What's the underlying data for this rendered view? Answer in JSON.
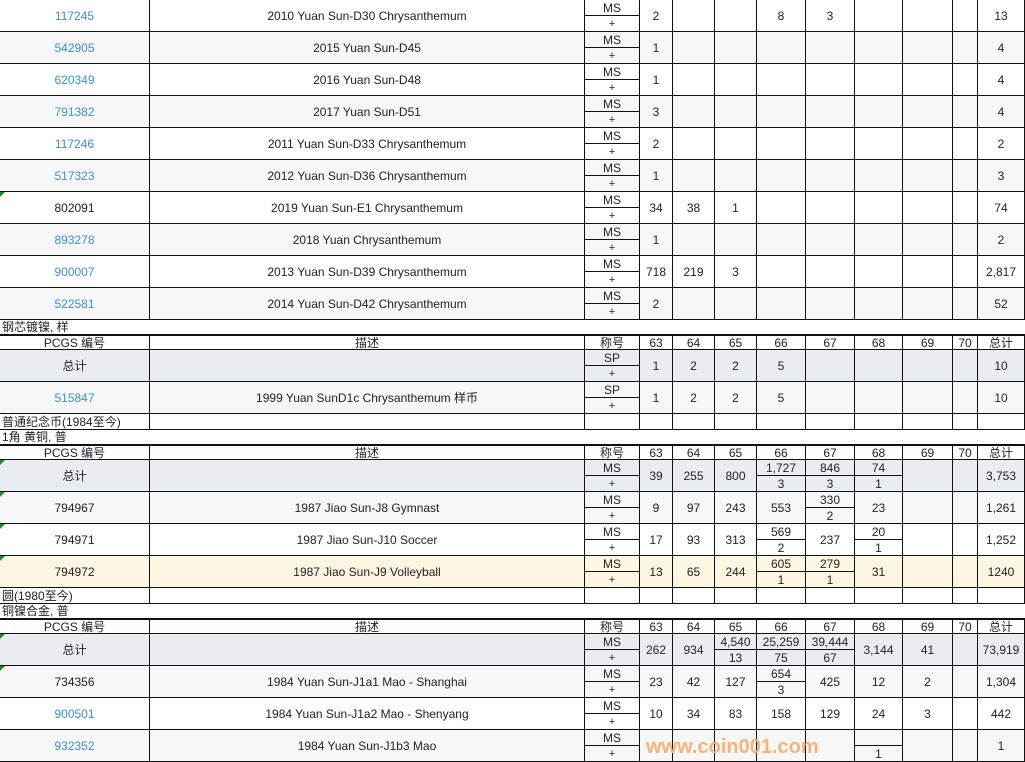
{
  "headers": {
    "id": "PCGS 编号",
    "desc": "描述",
    "designation": "称号",
    "grades": [
      "63",
      "64",
      "65",
      "66",
      "67",
      "68",
      "69",
      "70"
    ],
    "total": "总计"
  },
  "plus": "+",
  "blocks": [
    {
      "type": "rows",
      "rows": [
        {
          "id": "117245",
          "link": true,
          "desc": "2010 Yuan Sun-D30 Chrysanthemum",
          "des": "MS",
          "g": [
            "2",
            "",
            "",
            "8",
            "3",
            "",
            "",
            ""
          ],
          "total": "13"
        },
        {
          "id": "542905",
          "link": true,
          "desc": "2015 Yuan Sun-D45",
          "des": "MS",
          "g": [
            "1",
            "",
            "",
            "",
            "",
            "",
            "",
            ""
          ],
          "total": "4"
        },
        {
          "id": "620349",
          "link": true,
          "desc": "2016 Yuan Sun-D48",
          "des": "MS",
          "g": [
            "1",
            "",
            "",
            "",
            "",
            "",
            "",
            ""
          ],
          "total": "4"
        },
        {
          "id": "791382",
          "link": true,
          "desc": "2017 Yuan Sun-D51",
          "des": "MS",
          "g": [
            "3",
            "",
            "",
            "",
            "",
            "",
            "",
            ""
          ],
          "total": "4"
        },
        {
          "id": "117246",
          "link": true,
          "desc": "2011 Yuan Sun-D33 Chrysanthemum",
          "des": "MS",
          "g": [
            "2",
            "",
            "",
            "",
            "",
            "",
            "",
            ""
          ],
          "total": "2"
        },
        {
          "id": "517323",
          "link": true,
          "desc": "2012 Yuan Sun-D36 Chrysanthemum",
          "des": "MS",
          "g": [
            "1",
            "",
            "",
            "",
            "",
            "",
            "",
            ""
          ],
          "total": "3"
        },
        {
          "id": "802091",
          "link": false,
          "mark": true,
          "desc": "2019 Yuan Sun-E1 Chrysanthemum",
          "des": "MS",
          "g": [
            "34",
            "38",
            "1",
            "",
            "",
            "",
            "",
            ""
          ],
          "total": "74"
        },
        {
          "id": "893278",
          "link": true,
          "desc": "2018 Yuan Chrysanthemum",
          "des": "MS",
          "g": [
            "1",
            "",
            "",
            "",
            "",
            "",
            "",
            ""
          ],
          "total": "2"
        },
        {
          "id": "900007",
          "link": true,
          "desc": "2013 Yuan Sun-D39 Chrysanthemum",
          "des": "MS",
          "g": [
            "718",
            "219",
            "3",
            "",
            "",
            "",
            "",
            ""
          ],
          "total": "2,817"
        },
        {
          "id": "522581",
          "link": true,
          "desc": "2014 Yuan Sun-D42 Chrysanthemum",
          "des": "MS",
          "g": [
            "2",
            "",
            "",
            "",
            "",
            "",
            "",
            ""
          ],
          "total": "52"
        }
      ]
    },
    {
      "type": "section",
      "title": "钢芯镀镍, 样"
    },
    {
      "type": "header"
    },
    {
      "type": "rows",
      "rows": [
        {
          "id": "总计",
          "total_row": true,
          "desc": "",
          "des": "SP",
          "g": [
            "1",
            "2",
            "2",
            "5",
            "",
            "",
            "",
            ""
          ],
          "total": "10"
        },
        {
          "id": "515847",
          "link": true,
          "desc": "1999 Yuan SunD1c Chrysanthemum 样币",
          "des": "SP",
          "g": [
            "1",
            "2",
            "2",
            "5",
            "",
            "",
            "",
            ""
          ],
          "total": "10"
        }
      ]
    },
    {
      "type": "section",
      "title": "普通纪念币(1984至今)",
      "grid": true
    },
    {
      "type": "section",
      "title": "1角 黄铜, 普"
    },
    {
      "type": "header"
    },
    {
      "type": "rows",
      "rows": [
        {
          "id": "总计",
          "total_row": true,
          "mark": true,
          "desc": "",
          "des": "MS",
          "g": [
            "39",
            "255",
            "800",
            [
              "1,727",
              "3"
            ],
            [
              "846",
              "3"
            ],
            [
              "74",
              "1"
            ],
            "",
            ""
          ],
          "total": "3,753"
        },
        {
          "id": "794967",
          "mark": true,
          "desc": "1987 Jiao Sun-J8 Gymnast",
          "des": "MS",
          "g": [
            "9",
            "97",
            "243",
            "553",
            [
              "330",
              "2"
            ],
            "23",
            "",
            ""
          ],
          "total": "1,261"
        },
        {
          "id": "794971",
          "mark": true,
          "desc": "1987 Jiao Sun-J10 Soccer",
          "des": "MS",
          "g": [
            "17",
            "93",
            "313",
            [
              "569",
              "2"
            ],
            "237",
            [
              "20",
              "1"
            ],
            "",
            ""
          ],
          "total": "1,252"
        },
        {
          "id": "794972",
          "mark": true,
          "highlight": true,
          "desc": "1987 Jiao Sun-J9 Volleyball",
          "des": "MS",
          "g": [
            "13",
            "65",
            "244",
            [
              "605",
              "1"
            ],
            [
              "279",
              "1"
            ],
            "31",
            "",
            ""
          ],
          "total": "1240"
        }
      ]
    },
    {
      "type": "section",
      "title": "圆(1980至今)",
      "grid": true
    },
    {
      "type": "section",
      "title": "铜镍合金, 普"
    },
    {
      "type": "header"
    },
    {
      "type": "rows",
      "rows": [
        {
          "id": "总计",
          "total_row": true,
          "mark": true,
          "desc": "",
          "des": "MS",
          "g": [
            "262",
            "934",
            [
              "4,540",
              "13"
            ],
            [
              "25,259",
              "75"
            ],
            [
              "39,444",
              "67"
            ],
            "3,144",
            "41",
            ""
          ],
          "total": "73,919"
        },
        {
          "id": "734356",
          "mark": true,
          "desc": "1984 Yuan Sun-J1a1 Mao - Shanghai",
          "des": "MS",
          "g": [
            "23",
            "42",
            "127",
            [
              "654",
              "3"
            ],
            "425",
            "12",
            "2",
            ""
          ],
          "total": "1,304"
        },
        {
          "id": "900501",
          "link": true,
          "desc": "1984 Yuan Sun-J1a2 Mao - Shenyang",
          "des": "MS",
          "g": [
            "10",
            "34",
            "83",
            "158",
            "129",
            "24",
            "3",
            ""
          ],
          "total": "442"
        },
        {
          "id": "932352",
          "link": true,
          "desc": "1984 Yuan Sun-J1b3 Mao",
          "des": "MS",
          "g": [
            "",
            "",
            "",
            "",
            "",
            [
              "",
              "1"
            ],
            "",
            ""
          ],
          "total": "1"
        }
      ]
    }
  ],
  "watermark": "www.coin001.com"
}
